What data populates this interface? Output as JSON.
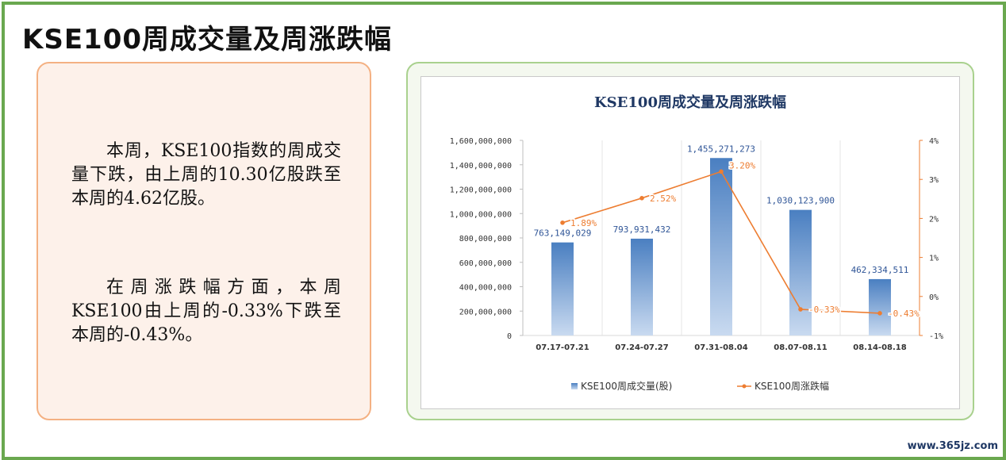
{
  "page": {
    "title": "KSE100周成交量及周涨跌幅",
    "paragraphs": [
      "本周，KSE100指数的周成交量下跌，由上周的10.30亿股跌至本周的4.62亿股。",
      "在周涨跌幅方面，本周KSE100由上周的-0.33%下跌至本周的-0.43%。"
    ],
    "watermark": "www.365jz.com"
  },
  "colors": {
    "frame": "#6aa84f",
    "text_card_border": "#f4b183",
    "text_card_bg": "#fdf1ea",
    "chart_card_border": "#a9d18e",
    "bar_top": "#4a7fc1",
    "bar_bottom": "#c9daf0",
    "line": "#ed7d31",
    "bar_label": "#2f5597",
    "line_label": "#ed7d31",
    "title": "#1f3864"
  },
  "chart_data": {
    "type": "bar",
    "title": "KSE100周成交量及周涨跌幅",
    "categories": [
      "07.17-07.21",
      "07.24-07.27",
      "07.31-08.04",
      "08.07-08.11",
      "08.14-08.18"
    ],
    "series": [
      {
        "name": "KSE100周成交量(股)",
        "kind": "bar",
        "axis": "left",
        "values": [
          763149029,
          793931432,
          1455271273,
          1030123900,
          462334511
        ],
        "labels": [
          "763,149,029",
          "793,931,432",
          "1,455,271,273",
          "1,030,123,900",
          "462,334,511"
        ]
      },
      {
        "name": "KSE100周涨跌幅",
        "kind": "line",
        "axis": "right",
        "values": [
          1.89,
          2.52,
          3.2,
          -0.33,
          -0.43
        ],
        "labels": [
          "1.89%",
          "2.52%",
          "3.20%",
          "-0.33%",
          "-0.43%"
        ]
      }
    ],
    "y_left": {
      "lim": [
        0,
        1600000000
      ],
      "ticks": [
        "0",
        "200,000,000",
        "400,000,000",
        "600,000,000",
        "800,000,000",
        "1,000,000,000",
        "1,200,000,000",
        "1,400,000,000",
        "1,600,000,000"
      ]
    },
    "y_right": {
      "lim": [
        -1,
        4
      ],
      "ticks": [
        "-1%",
        "0%",
        "1%",
        "2%",
        "3%",
        "4%"
      ]
    },
    "grid": "vertical",
    "legend": "bottom"
  }
}
